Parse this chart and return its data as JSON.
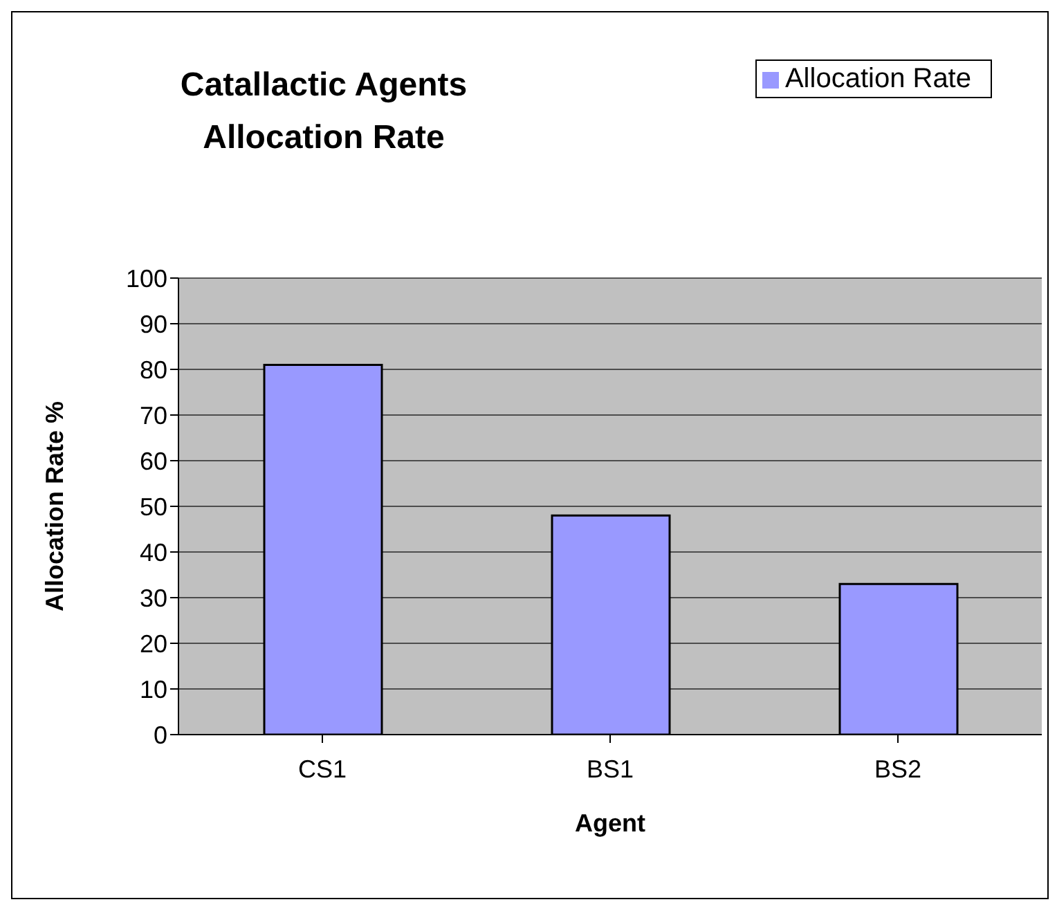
{
  "chart_data": {
    "type": "bar",
    "title": "Catallactic Agents\nAllocation Rate",
    "xlabel": "Agent",
    "ylabel": "Allocation Rate %",
    "categories": [
      "CS1",
      "BS1",
      "BS2"
    ],
    "series": [
      {
        "name": "Allocation Rate",
        "color": "#9999ff",
        "values": [
          81,
          48,
          33
        ]
      }
    ],
    "ylim": [
      0,
      100
    ],
    "yticks": [
      0,
      10,
      20,
      30,
      40,
      50,
      60,
      70,
      80,
      90,
      100
    ],
    "grid": "y",
    "legend": "top right"
  }
}
